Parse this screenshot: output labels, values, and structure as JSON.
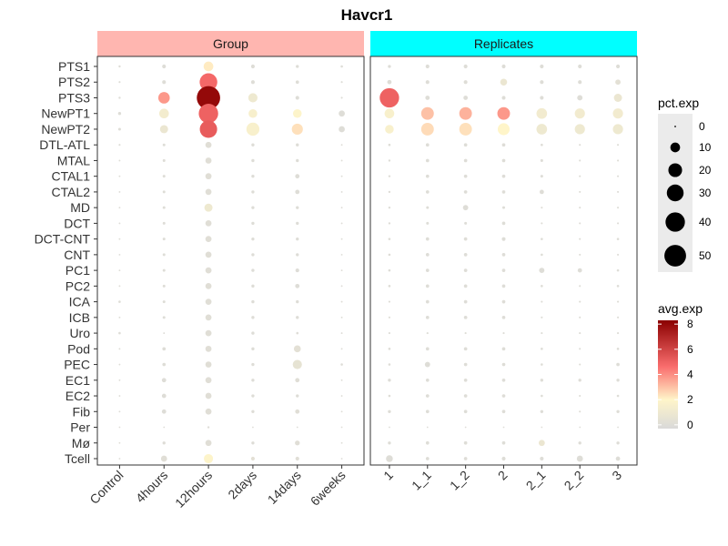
{
  "chart_data": {
    "type": "dotplot",
    "title": "Havcr1",
    "panels": [
      {
        "name": "Group",
        "strip_color": "#FFB6B0",
        "conditions": [
          "Control",
          "4hours",
          "12hours",
          "2days",
          "14days",
          "6weeks"
        ]
      },
      {
        "name": "Replicates",
        "strip_color": "#00FFFF",
        "conditions": [
          "1",
          "1_1",
          "1_2",
          "2",
          "2_1",
          "2_2",
          "3"
        ]
      }
    ],
    "cell_types": [
      "PTS1",
      "PTS2",
      "PTS3",
      "NewPT1",
      "NewPT2",
      "DTL-ATL",
      "MTAL",
      "CTAL1",
      "CTAL2",
      "MD",
      "DCT",
      "DCT-CNT",
      "CNT",
      "PC1",
      "PC2",
      "ICA",
      "ICB",
      "Uro",
      "Pod",
      "PEC",
      "EC1",
      "EC2",
      "Fib",
      "Per",
      "Mø",
      "Tcell"
    ],
    "size_legend": {
      "title": "pct.exp",
      "breaks": [
        0,
        10,
        20,
        30,
        40,
        50
      ]
    },
    "color_legend": {
      "title": "avg.exp",
      "breaks": [
        0,
        2,
        4,
        6,
        8
      ],
      "range": [
        -0.3,
        8.3
      ],
      "colors": [
        "#d9d9d9",
        "#fff5c9",
        "#fa6e6e",
        "#8b0000"
      ]
    },
    "group_pct": [
      [
        0.5,
        1.5,
        10,
        1.5,
        1.0,
        0.6
      ],
      [
        0.4,
        1.5,
        33,
        1.5,
        1.2,
        0.4
      ],
      [
        0.5,
        14,
        58,
        9,
        1.5,
        0.4
      ],
      [
        1.0,
        10,
        40,
        8,
        8,
        4
      ],
      [
        0.8,
        7,
        32,
        18,
        13,
        4
      ],
      [
        0.4,
        0.8,
        4,
        1.0,
        1.0,
        0.3
      ],
      [
        0.3,
        0.8,
        4,
        1.0,
        1.0,
        0.3
      ],
      [
        0.3,
        0.8,
        4,
        1.0,
        2.0,
        0.3
      ],
      [
        0.3,
        0.8,
        4,
        1.0,
        2.0,
        0.3
      ],
      [
        0.3,
        0.8,
        7,
        1.0,
        1.0,
        0.3
      ],
      [
        0.3,
        0.8,
        4,
        1.0,
        1.0,
        0.3
      ],
      [
        0.3,
        0.8,
        4,
        1.0,
        1.0,
        0.3
      ],
      [
        0.3,
        0.8,
        4,
        1.0,
        1.0,
        0.3
      ],
      [
        0.3,
        0.8,
        4,
        1.0,
        1.5,
        0.3
      ],
      [
        0.3,
        0.8,
        4,
        1.0,
        2.0,
        0.3
      ],
      [
        0.6,
        0.8,
        4,
        1.0,
        1.0,
        0.3
      ],
      [
        0.3,
        0.8,
        4,
        1.0,
        1.0,
        0.3
      ],
      [
        0.6,
        0.3,
        4,
        1.0,
        0.6,
        0.3
      ],
      [
        0.3,
        1.2,
        4,
        1.0,
        5,
        0.3
      ],
      [
        0.3,
        1.2,
        4,
        1.0,
        9,
        0.6
      ],
      [
        0.3,
        2.0,
        4,
        1.0,
        2.0,
        0.3
      ],
      [
        0.3,
        2.0,
        4,
        1.0,
        1.0,
        0.3
      ],
      [
        0.3,
        2.0,
        4,
        1.0,
        2.0,
        0.3
      ],
      [
        0.2,
        0.2,
        0.5,
        0.2,
        0.2,
        0.2
      ],
      [
        0.3,
        1.0,
        4,
        1.0,
        2.5,
        0.3
      ],
      [
        0.3,
        4,
        9,
        1.5,
        1.5,
        0.3
      ]
    ],
    "group_avg": [
      [
        0,
        0,
        2.2,
        0,
        0,
        0
      ],
      [
        0,
        0,
        4.8,
        0,
        0,
        0
      ],
      [
        0,
        3.8,
        8.0,
        1.0,
        0,
        0
      ],
      [
        0,
        1.3,
        5.0,
        1.5,
        1.9,
        0
      ],
      [
        0,
        0.8,
        5.2,
        1.6,
        2.4,
        0
      ],
      [
        0,
        0,
        0.1,
        0,
        0,
        0
      ],
      [
        0,
        0,
        0.1,
        0,
        0,
        0
      ],
      [
        0,
        0,
        0.1,
        0,
        0,
        0
      ],
      [
        0,
        0,
        0.1,
        0,
        0,
        0
      ],
      [
        0,
        0,
        1.0,
        0,
        0,
        0
      ],
      [
        0,
        0,
        0.1,
        0,
        0,
        0
      ],
      [
        0,
        0,
        0.1,
        0,
        0,
        0
      ],
      [
        0,
        0,
        0.1,
        0,
        0,
        0
      ],
      [
        0,
        0,
        0.1,
        0,
        0,
        0
      ],
      [
        0,
        0,
        0.1,
        0,
        0,
        0
      ],
      [
        0,
        0,
        0.1,
        0,
        0,
        0
      ],
      [
        0,
        0,
        0.1,
        0,
        0,
        0
      ],
      [
        0,
        0,
        0.1,
        0,
        0,
        0
      ],
      [
        0,
        0,
        0.1,
        0,
        0.3,
        0
      ],
      [
        0,
        0,
        0.1,
        0,
        0.5,
        0
      ],
      [
        0,
        0,
        0.1,
        0,
        0.1,
        0
      ],
      [
        0,
        0,
        0.1,
        0,
        0,
        0
      ],
      [
        0,
        0,
        0.1,
        0,
        0.1,
        0
      ],
      [
        0,
        0,
        0,
        0,
        0,
        0
      ],
      [
        0,
        0,
        0.1,
        0,
        0.1,
        0
      ],
      [
        0,
        0.1,
        1.9,
        0.3,
        0.1,
        0
      ]
    ],
    "rep_pct": [
      [
        1.0,
        1.5,
        1.5,
        1.5,
        1.5,
        1.5,
        1.5
      ],
      [
        2.0,
        1.5,
        1.5,
        5,
        1.5,
        1.5,
        3
      ],
      [
        40,
        2.0,
        2.0,
        1.5,
        1.5,
        3,
        7
      ],
      [
        10,
        17,
        17,
        17,
        12,
        11,
        11
      ],
      [
        8,
        17,
        17,
        15,
        12,
        11,
        11
      ],
      [
        0.6,
        1.2,
        1.2,
        1.2,
        0.6,
        0.4,
        0.4
      ],
      [
        0.5,
        1.2,
        1.2,
        1.2,
        0.8,
        0.4,
        0.4
      ],
      [
        0.5,
        1.2,
        1.2,
        1.2,
        0.8,
        0.4,
        0.4
      ],
      [
        0.5,
        1.2,
        1.2,
        1.2,
        2.0,
        0.4,
        0.4
      ],
      [
        0.5,
        0.8,
        3,
        0.8,
        0.4,
        0.4,
        0.4
      ],
      [
        0.5,
        0.8,
        0.8,
        1.2,
        0.4,
        0.4,
        0.4
      ],
      [
        0.6,
        1.2,
        1.2,
        1.5,
        0.6,
        0.4,
        0.6
      ],
      [
        0.6,
        1.2,
        1.2,
        1.2,
        0.6,
        0.4,
        0.4
      ],
      [
        0.6,
        1.2,
        1.2,
        1.2,
        3,
        2.0,
        0.6
      ],
      [
        0.6,
        1.2,
        1.2,
        1.2,
        0.6,
        0.4,
        0.6
      ],
      [
        0.4,
        1.2,
        1.2,
        1.2,
        0.4,
        0.4,
        0.4
      ],
      [
        0.4,
        1.2,
        1.2,
        1.2,
        0.4,
        0.4,
        0.4
      ],
      [
        0.4,
        0.4,
        0.4,
        0.4,
        0.4,
        0.4,
        0.4
      ],
      [
        0.6,
        1.2,
        1.2,
        1.2,
        0.6,
        0.4,
        0.6
      ],
      [
        0.6,
        3,
        1.2,
        1.2,
        0.6,
        0.4,
        1.2
      ],
      [
        1.0,
        1.2,
        1.2,
        1.2,
        1.0,
        1.0,
        1.0
      ],
      [
        0.6,
        1.2,
        1.2,
        1.2,
        0.6,
        0.4,
        0.6
      ],
      [
        1.0,
        1.2,
        1.2,
        1.2,
        1.0,
        0.4,
        1.0
      ],
      [
        0.2,
        0.2,
        0.2,
        0.2,
        0.2,
        0.2,
        0.2
      ],
      [
        1.0,
        1.2,
        1.2,
        1.2,
        4,
        1.0,
        1.0
      ],
      [
        5,
        1.2,
        1.2,
        1.5,
        1.5,
        4,
        2.0
      ]
    ],
    "rep_avg": [
      [
        0,
        0,
        0,
        0,
        0,
        0,
        0
      ],
      [
        0,
        0,
        0,
        0.8,
        0,
        0,
        0.3
      ],
      [
        5.0,
        0,
        0,
        0,
        0,
        0,
        0.8
      ],
      [
        1.6,
        3.0,
        3.3,
        3.8,
        1.2,
        1.2,
        1.2
      ],
      [
        1.6,
        2.5,
        2.4,
        2.0,
        1.0,
        1.0,
        1.0
      ],
      [
        0,
        0,
        0,
        0,
        0,
        0,
        0
      ],
      [
        0,
        0,
        0,
        0,
        0,
        0,
        0
      ],
      [
        0,
        0,
        0,
        0,
        0,
        0,
        0
      ],
      [
        0,
        0,
        0,
        0,
        0,
        0,
        0
      ],
      [
        0,
        0,
        0,
        0,
        0,
        0,
        0
      ],
      [
        0,
        0,
        0,
        0,
        0,
        0,
        0
      ],
      [
        0,
        0,
        0,
        0,
        0,
        0,
        0
      ],
      [
        0,
        0,
        0,
        0,
        0,
        0,
        0
      ],
      [
        0,
        0,
        0,
        0,
        0,
        0,
        0
      ],
      [
        0,
        0,
        0,
        0,
        0,
        0,
        0
      ],
      [
        0,
        0,
        0,
        0,
        0,
        0,
        0
      ],
      [
        0,
        0,
        0,
        0,
        0,
        0,
        0
      ],
      [
        0,
        0,
        0,
        0,
        0,
        0,
        0
      ],
      [
        0,
        0,
        0,
        0,
        0,
        0,
        0
      ],
      [
        0,
        0,
        0,
        0,
        0,
        0,
        0
      ],
      [
        0,
        0,
        0,
        0,
        0,
        0,
        0
      ],
      [
        0,
        0,
        0,
        0,
        0,
        0,
        0
      ],
      [
        0,
        0,
        0,
        0,
        0,
        0,
        0
      ],
      [
        0,
        0,
        0,
        0,
        0,
        0,
        0
      ],
      [
        0,
        0,
        0,
        0,
        0.8,
        0,
        0
      ],
      [
        0,
        0,
        0,
        0,
        0,
        0,
        0
      ]
    ]
  }
}
